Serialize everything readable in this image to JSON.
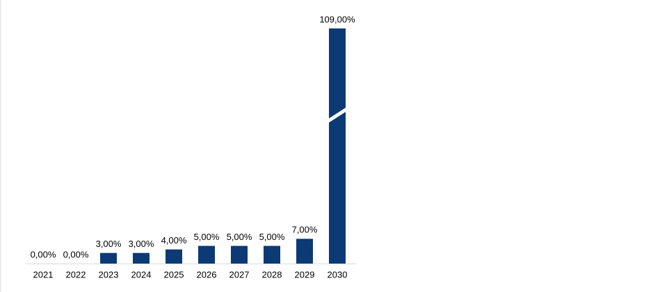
{
  "chart_data": {
    "type": "bar",
    "categories": [
      "2021",
      "2022",
      "2023",
      "2024",
      "2025",
      "2026",
      "2027",
      "2028",
      "2029",
      "2030"
    ],
    "values": [
      0,
      0,
      3,
      3,
      4,
      5,
      5,
      5,
      7,
      109
    ],
    "value_labels": [
      "0,00%",
      "0,00%",
      "3,00%",
      "3,00%",
      "4,00%",
      "5,00%",
      "5,00%",
      "5,00%",
      "7,00%",
      "109,00%"
    ],
    "color": "#0b3a75",
    "axis_break": true
  }
}
